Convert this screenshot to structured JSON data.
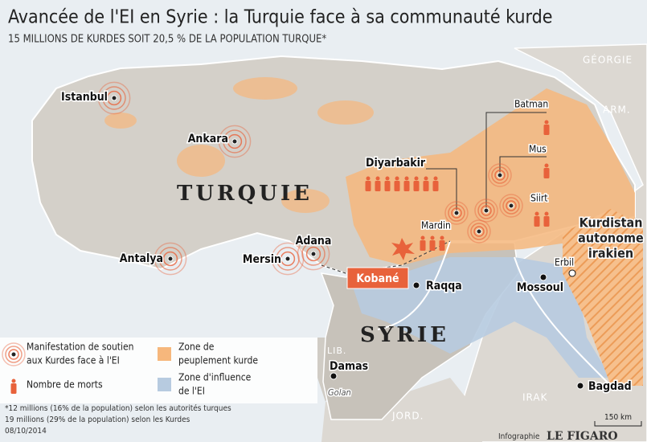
{
  "header": {
    "title": "Avancée de l'EI en Syrie : la Turquie face à sa communauté kurde",
    "subtitle": "15 MILLIONS DE KURDES SOIT 20,5 % DE LA POPULATION TURQUE*"
  },
  "places": [
    {
      "name": "Istanbul",
      "protest": true
    },
    {
      "name": "Ankara",
      "protest": true
    },
    {
      "name": "Antalya",
      "protest": true
    },
    {
      "name": "Mersin",
      "protest": true
    },
    {
      "name": "Adana",
      "protest": true
    },
    {
      "name": "Diyarbakir",
      "protest": true,
      "deaths": 8
    },
    {
      "name": "Batman",
      "protest": true,
      "deaths": 1
    },
    {
      "name": "Mus",
      "protest": true,
      "deaths": 1
    },
    {
      "name": "Siirt",
      "protest": true,
      "deaths": 2
    },
    {
      "name": "Mardin",
      "protest": true,
      "deaths": 3
    },
    {
      "name": "Kobané"
    },
    {
      "name": "Raqqa"
    },
    {
      "name": "Mossoul"
    },
    {
      "name": "Erbil"
    },
    {
      "name": "Damas"
    },
    {
      "name": "Bagdad"
    },
    {
      "name": "Golan"
    }
  ],
  "regions": [
    {
      "name": "TURQUIE"
    },
    {
      "name": "SYRIE"
    },
    {
      "name": "GÉORGIE"
    },
    {
      "name": "ARM."
    },
    {
      "name": "IRAK"
    },
    {
      "name": "LIB."
    },
    {
      "name": "JORD."
    },
    {
      "name": [
        "Kurdistan",
        "autonome",
        "irakien"
      ]
    }
  ],
  "legend": [
    {
      "lines": [
        "Manifestation de soutien",
        "aux Kurdes face à l'EI"
      ]
    },
    {
      "lines": [
        "Nombre de morts"
      ]
    },
    {
      "lines": [
        "Zone de",
        "peuplement kurde"
      ]
    },
    {
      "lines": [
        "Zone d'influence",
        "de l'EI"
      ]
    }
  ],
  "footnotes": [
    "*12 millions (16% de la population) selon les autorités turques",
    "19 millions (29% de la population) selon les Kurdes",
    "08/10/2014"
  ],
  "scale": "150 km",
  "credit": {
    "label": "Infographie",
    "brand": "LE FIGARO"
  }
}
